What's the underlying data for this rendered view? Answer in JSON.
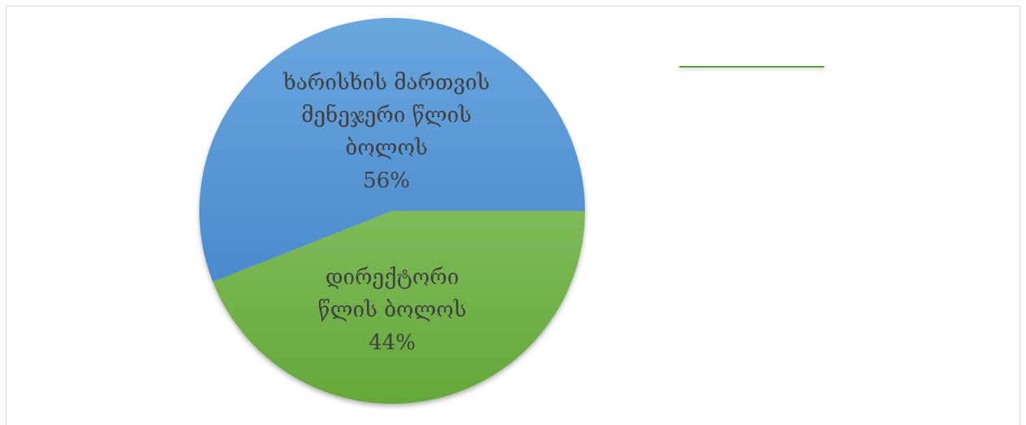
{
  "chart_data": {
    "type": "pie",
    "title": "",
    "slices": [
      {
        "label_lines": [
          "ხარისხის მართვის",
          "მენეჯერი წლის",
          "ბოლოს"
        ],
        "percent_label": "56%",
        "value": 56,
        "color": "#5b9bd5"
      },
      {
        "label_lines": [
          "დირექტორი",
          "წლის ბოლოს"
        ],
        "percent_label": "44%",
        "value": 44,
        "color": "#70ad47"
      }
    ],
    "legend": {
      "entries": [],
      "placement": "top-right"
    }
  }
}
